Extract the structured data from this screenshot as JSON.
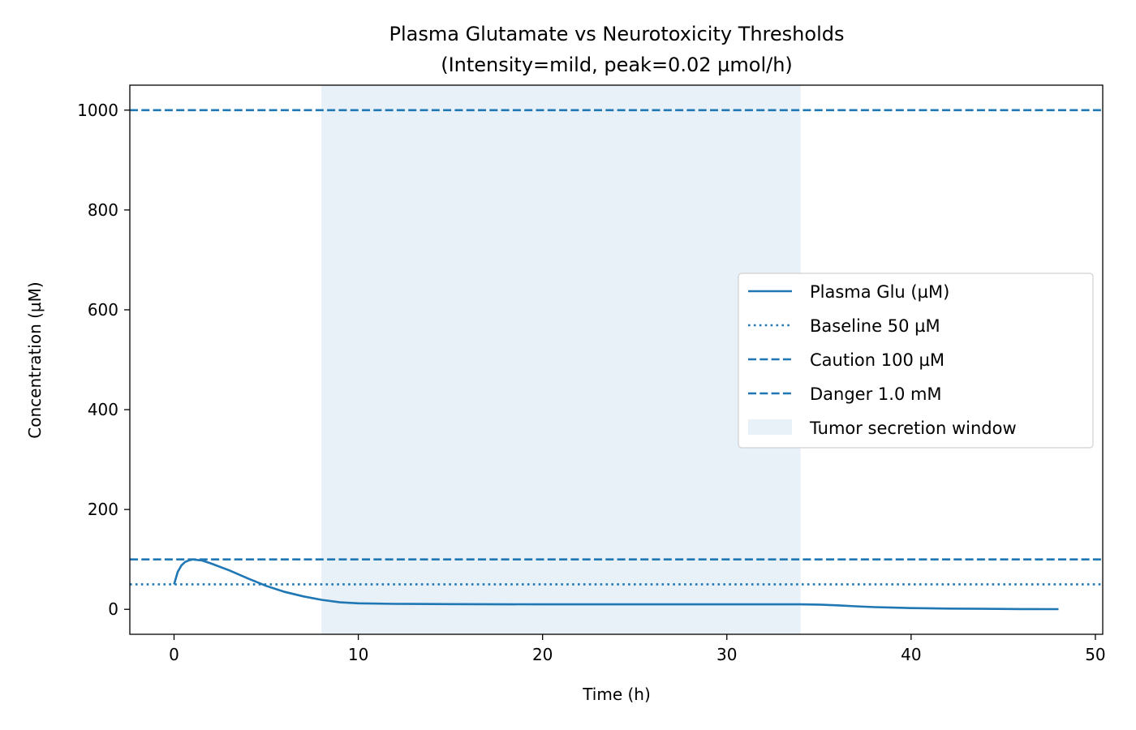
{
  "chart_data": {
    "type": "line",
    "title": "Plasma Glutamate vs Neurotoxicity Thresholds",
    "subtitle": "(Intensity=mild, peak=0.02 µmol/h)",
    "xlabel": "Time (h)",
    "ylabel": "Concentration (µM)",
    "xlim": [
      -2.4,
      50.4
    ],
    "ylim": [
      -50,
      1050
    ],
    "xticks": [
      0,
      10,
      20,
      30,
      40,
      50
    ],
    "yticks": [
      0,
      200,
      400,
      600,
      800,
      1000
    ],
    "grid": false,
    "legend_position": "center-right",
    "color": "#1f77b4",
    "series": [
      {
        "name": "Plasma Glu (µM)",
        "x": [
          0,
          0.2,
          0.4,
          0.6,
          0.8,
          1,
          1.5,
          2,
          3,
          4,
          5,
          6,
          7,
          8,
          9,
          10,
          12,
          15,
          20,
          25,
          30,
          34,
          35,
          36,
          37,
          38,
          39,
          40,
          42,
          44,
          46,
          48
        ],
        "values": [
          50,
          75,
          88,
          95,
          98,
          100,
          98,
          92,
          78,
          62,
          47,
          35,
          26,
          19,
          14,
          12,
          11,
          10.5,
          10,
          10,
          10,
          10,
          9.5,
          8,
          6,
          4.5,
          3.5,
          2.5,
          1.5,
          1,
          0.6,
          0.4
        ]
      }
    ],
    "thresholds": [
      {
        "name": "Baseline 50 µM",
        "value": 50,
        "style": "dotted"
      },
      {
        "name": "Caution 100 µM",
        "value": 100,
        "style": "dashed"
      },
      {
        "name": "Danger 1.0 mM",
        "value": 1000,
        "style": "dashed"
      }
    ],
    "shaded_region": {
      "name": "Tumor secretion window",
      "x": [
        8,
        34
      ],
      "color": "#e8f0f8"
    }
  }
}
